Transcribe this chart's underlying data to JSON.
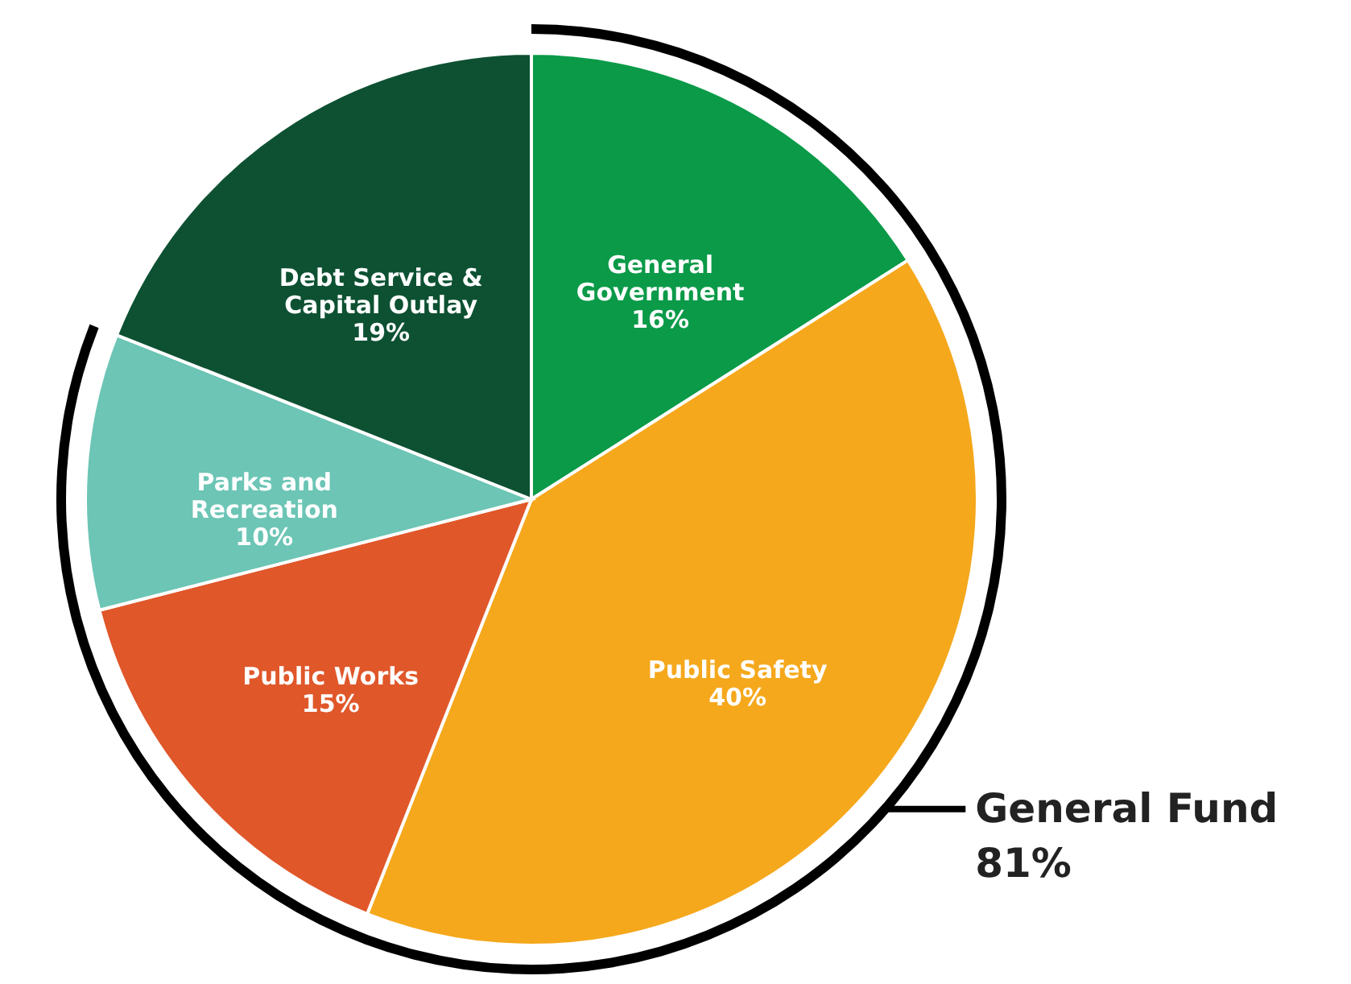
{
  "chart_data": {
    "type": "pie",
    "categories": [
      "General Government",
      "Public Safety",
      "Public Works",
      "Parks and Recreation",
      "Debt Service & Capital Outlay"
    ],
    "values": [
      16,
      40,
      15,
      10,
      19
    ],
    "value_labels": [
      "16%",
      "40%",
      "15%",
      "10%",
      "19%"
    ],
    "colors": [
      "#0a9a48",
      "#f5a81c",
      "#e0572a",
      "#6cc5b5",
      "#0d5132"
    ],
    "annotations": [
      "General Fund\n81%"
    ]
  }
}
